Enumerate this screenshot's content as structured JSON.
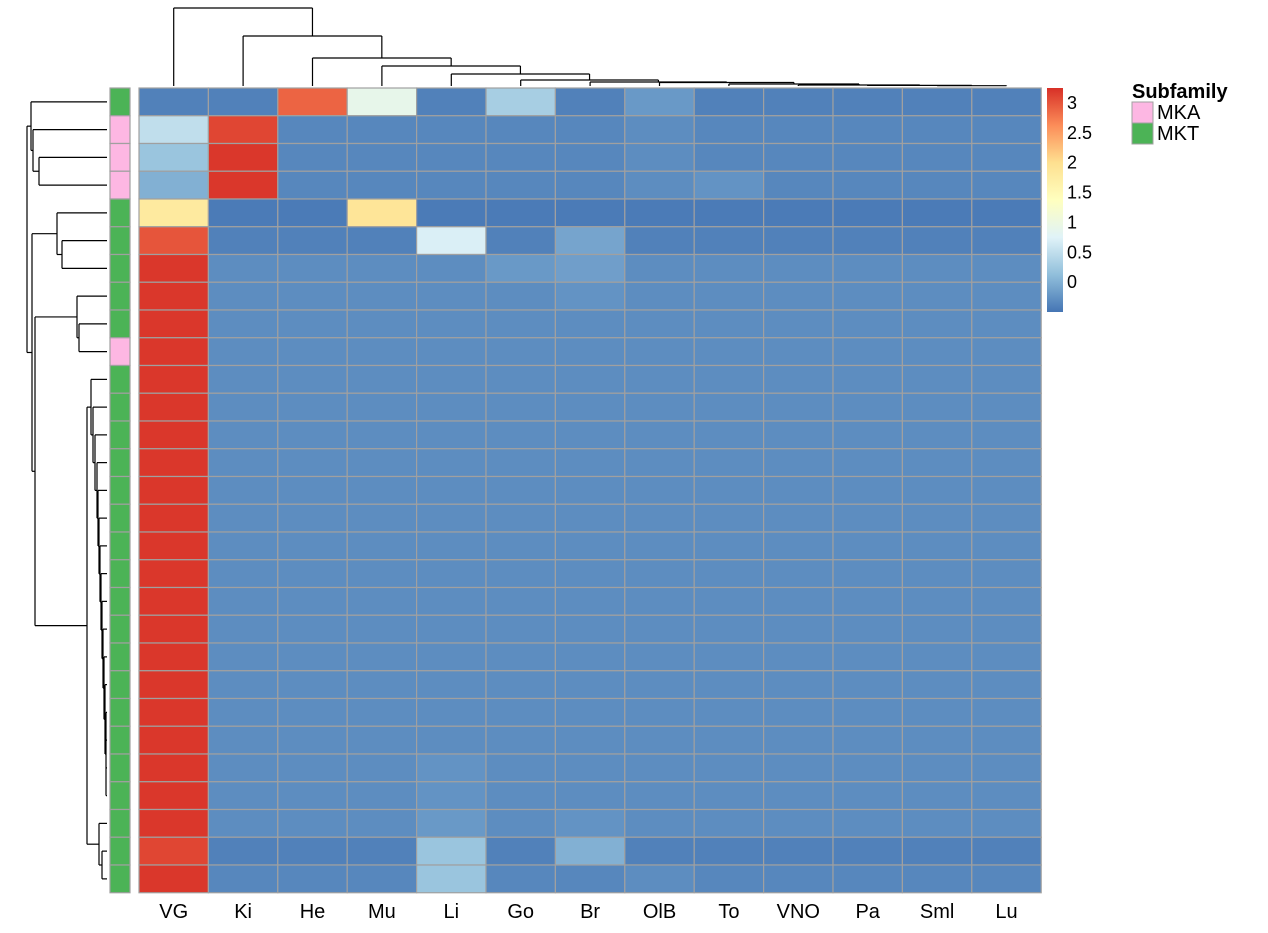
{
  "chart_data": {
    "type": "heatmap",
    "columns": [
      "VG",
      "Ki",
      "He",
      "Mu",
      "Li",
      "Go",
      "Br",
      "OlB",
      "To",
      "VNO",
      "Pa",
      "Sml",
      "Lu"
    ],
    "row_annotation": [
      "MKT",
      "MKA",
      "MKA",
      "MKA",
      "MKT",
      "MKT",
      "MKT",
      "MKT",
      "MKT",
      "MKA",
      "MKT",
      "MKT",
      "MKT",
      "MKT",
      "MKT",
      "MKT",
      "MKT",
      "MKT",
      "MKT",
      "MKT",
      "MKT",
      "MKT",
      "MKT",
      "MKT",
      "MKT",
      "MKT",
      "MKT",
      "MKT",
      "MKT"
    ],
    "values": [
      [
        -0.4,
        -0.4,
        2.9,
        0.9,
        -0.4,
        0.3,
        -0.4,
        -0.2,
        -0.4,
        -0.4,
        -0.4,
        -0.4,
        -0.4
      ],
      [
        0.5,
        3.1,
        -0.35,
        -0.35,
        -0.35,
        -0.35,
        -0.35,
        -0.3,
        -0.35,
        -0.35,
        -0.35,
        -0.35,
        -0.35
      ],
      [
        0.2,
        3.2,
        -0.35,
        -0.35,
        -0.35,
        -0.35,
        -0.35,
        -0.3,
        -0.35,
        -0.35,
        -0.35,
        -0.35,
        -0.35
      ],
      [
        0.0,
        3.2,
        -0.35,
        -0.35,
        -0.35,
        -0.35,
        -0.35,
        -0.3,
        -0.25,
        -0.35,
        -0.35,
        -0.35,
        -0.35
      ],
      [
        1.8,
        -0.45,
        -0.45,
        1.9,
        -0.45,
        -0.45,
        -0.45,
        -0.45,
        -0.45,
        -0.45,
        -0.45,
        -0.45,
        -0.45
      ],
      [
        3.0,
        -0.4,
        -0.4,
        -0.4,
        0.7,
        -0.4,
        -0.1,
        -0.4,
        -0.4,
        -0.4,
        -0.4,
        -0.4,
        -0.4
      ],
      [
        3.2,
        -0.3,
        -0.3,
        -0.3,
        -0.3,
        -0.2,
        -0.15,
        -0.3,
        -0.3,
        -0.3,
        -0.3,
        -0.3,
        -0.3
      ],
      [
        3.2,
        -0.3,
        -0.3,
        -0.3,
        -0.3,
        -0.3,
        -0.25,
        -0.3,
        -0.3,
        -0.3,
        -0.3,
        -0.3,
        -0.3
      ],
      [
        3.2,
        -0.3,
        -0.3,
        -0.3,
        -0.3,
        -0.3,
        -0.3,
        -0.3,
        -0.3,
        -0.3,
        -0.3,
        -0.3,
        -0.3
      ],
      [
        3.2,
        -0.3,
        -0.3,
        -0.3,
        -0.3,
        -0.3,
        -0.3,
        -0.3,
        -0.3,
        -0.3,
        -0.3,
        -0.3,
        -0.3
      ],
      [
        3.2,
        -0.3,
        -0.3,
        -0.3,
        -0.3,
        -0.3,
        -0.3,
        -0.3,
        -0.3,
        -0.3,
        -0.3,
        -0.3,
        -0.3
      ],
      [
        3.2,
        -0.3,
        -0.3,
        -0.3,
        -0.3,
        -0.3,
        -0.3,
        -0.3,
        -0.3,
        -0.3,
        -0.3,
        -0.3,
        -0.3
      ],
      [
        3.2,
        -0.3,
        -0.3,
        -0.3,
        -0.3,
        -0.3,
        -0.3,
        -0.3,
        -0.3,
        -0.3,
        -0.3,
        -0.3,
        -0.3
      ],
      [
        3.2,
        -0.3,
        -0.3,
        -0.3,
        -0.3,
        -0.3,
        -0.3,
        -0.3,
        -0.3,
        -0.3,
        -0.3,
        -0.3,
        -0.3
      ],
      [
        3.2,
        -0.3,
        -0.3,
        -0.3,
        -0.3,
        -0.3,
        -0.3,
        -0.3,
        -0.3,
        -0.3,
        -0.3,
        -0.3,
        -0.3
      ],
      [
        3.2,
        -0.3,
        -0.3,
        -0.3,
        -0.3,
        -0.3,
        -0.3,
        -0.3,
        -0.3,
        -0.3,
        -0.3,
        -0.3,
        -0.3
      ],
      [
        3.2,
        -0.3,
        -0.3,
        -0.3,
        -0.3,
        -0.3,
        -0.3,
        -0.3,
        -0.3,
        -0.3,
        -0.3,
        -0.3,
        -0.3
      ],
      [
        3.2,
        -0.3,
        -0.3,
        -0.3,
        -0.3,
        -0.3,
        -0.3,
        -0.3,
        -0.3,
        -0.3,
        -0.3,
        -0.3,
        -0.3
      ],
      [
        3.2,
        -0.3,
        -0.3,
        -0.3,
        -0.3,
        -0.3,
        -0.3,
        -0.3,
        -0.3,
        -0.3,
        -0.3,
        -0.3,
        -0.3
      ],
      [
        3.2,
        -0.3,
        -0.3,
        -0.3,
        -0.3,
        -0.3,
        -0.3,
        -0.3,
        -0.3,
        -0.3,
        -0.3,
        -0.3,
        -0.3
      ],
      [
        3.2,
        -0.3,
        -0.3,
        -0.3,
        -0.3,
        -0.3,
        -0.3,
        -0.3,
        -0.3,
        -0.3,
        -0.3,
        -0.3,
        -0.3
      ],
      [
        3.2,
        -0.3,
        -0.3,
        -0.3,
        -0.3,
        -0.3,
        -0.3,
        -0.3,
        -0.3,
        -0.3,
        -0.3,
        -0.3,
        -0.3
      ],
      [
        3.2,
        -0.3,
        -0.3,
        -0.3,
        -0.3,
        -0.3,
        -0.3,
        -0.3,
        -0.3,
        -0.3,
        -0.3,
        -0.3,
        -0.3
      ],
      [
        3.2,
        -0.3,
        -0.3,
        -0.3,
        -0.3,
        -0.3,
        -0.3,
        -0.3,
        -0.3,
        -0.3,
        -0.3,
        -0.3,
        -0.3
      ],
      [
        3.2,
        -0.3,
        -0.3,
        -0.3,
        -0.25,
        -0.3,
        -0.3,
        -0.3,
        -0.3,
        -0.3,
        -0.3,
        -0.3,
        -0.3
      ],
      [
        3.2,
        -0.3,
        -0.3,
        -0.3,
        -0.25,
        -0.3,
        -0.3,
        -0.3,
        -0.3,
        -0.3,
        -0.3,
        -0.3,
        -0.3
      ],
      [
        3.2,
        -0.3,
        -0.3,
        -0.3,
        -0.2,
        -0.3,
        -0.25,
        -0.3,
        -0.3,
        -0.3,
        -0.3,
        -0.3,
        -0.3
      ],
      [
        3.1,
        -0.4,
        -0.4,
        -0.4,
        0.2,
        -0.4,
        0.0,
        -0.4,
        -0.4,
        -0.4,
        -0.4,
        -0.4,
        -0.4
      ],
      [
        3.2,
        -0.35,
        -0.35,
        -0.35,
        0.2,
        -0.35,
        -0.35,
        -0.3,
        -0.35,
        -0.35,
        -0.35,
        -0.35,
        -0.35
      ]
    ],
    "color_scale": {
      "range": [
        -0.5,
        3.25
      ],
      "stops": [
        "#4575B4",
        "#91BFDB",
        "#E0F3F8",
        "#FFFFBF",
        "#FEE090",
        "#FC8D59",
        "#D73027"
      ],
      "ticks": [
        "3",
        "2.5",
        "2",
        "1.5",
        "1",
        "0.5",
        "0"
      ]
    },
    "legend": {
      "title": "Subfamily",
      "entries": [
        {
          "label": "MKA",
          "color": "#FDB7E3"
        },
        {
          "label": "MKT",
          "color": "#4CB356"
        }
      ]
    },
    "row_dendrogram": true,
    "column_dendrogram": true
  }
}
